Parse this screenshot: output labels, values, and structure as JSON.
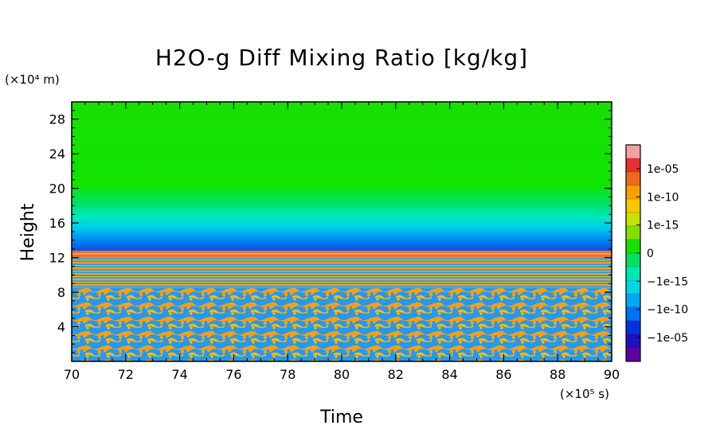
{
  "chart_data": {
    "type": "heatmap",
    "title": "H2O-g Diff Mixing Ratio [kg/kg]",
    "xlabel": "Time",
    "ylabel": "Height",
    "x_unit": "(×10⁵ s)",
    "y_unit": "(×10⁴ m)",
    "xlim": [
      70,
      90
    ],
    "ylim": [
      0,
      30
    ],
    "x_ticks": [
      "70",
      "72",
      "74",
      "76",
      "78",
      "80",
      "82",
      "84",
      "86",
      "88",
      "90"
    ],
    "y_ticks": [
      "4",
      "8",
      "12",
      "16",
      "20",
      "24",
      "28"
    ],
    "grid": false,
    "colorbar": {
      "position": "right",
      "labels": [
        "1e-05",
        "1e-10",
        "1e-15",
        "0",
        "−1e-15",
        "−1e-10",
        "−1e-05"
      ],
      "colors": [
        "#f0a0a0",
        "#e83030",
        "#f06820",
        "#f5a000",
        "#f5c800",
        "#c8e000",
        "#80e000",
        "#18e000",
        "#00e060",
        "#00e8b0",
        "#00d8e0",
        "#00a8f0",
        "#0070f0",
        "#0030e0",
        "#2010c0",
        "#6000a0"
      ]
    },
    "regions": [
      {
        "height_range": [
          16,
          30
        ],
        "value": "≈0 (slightly negative toward 16)"
      },
      {
        "height_range": [
          12.5,
          16
        ],
        "value": "−1e-15 to −1e-08"
      },
      {
        "height_range": [
          12,
          12.8
        ],
        "value": "≈1e-10 (positive layer)"
      },
      {
        "height_range": [
          0,
          12
        ],
        "value": "alternating ±1e-10 banded / cellular"
      }
    ]
  }
}
